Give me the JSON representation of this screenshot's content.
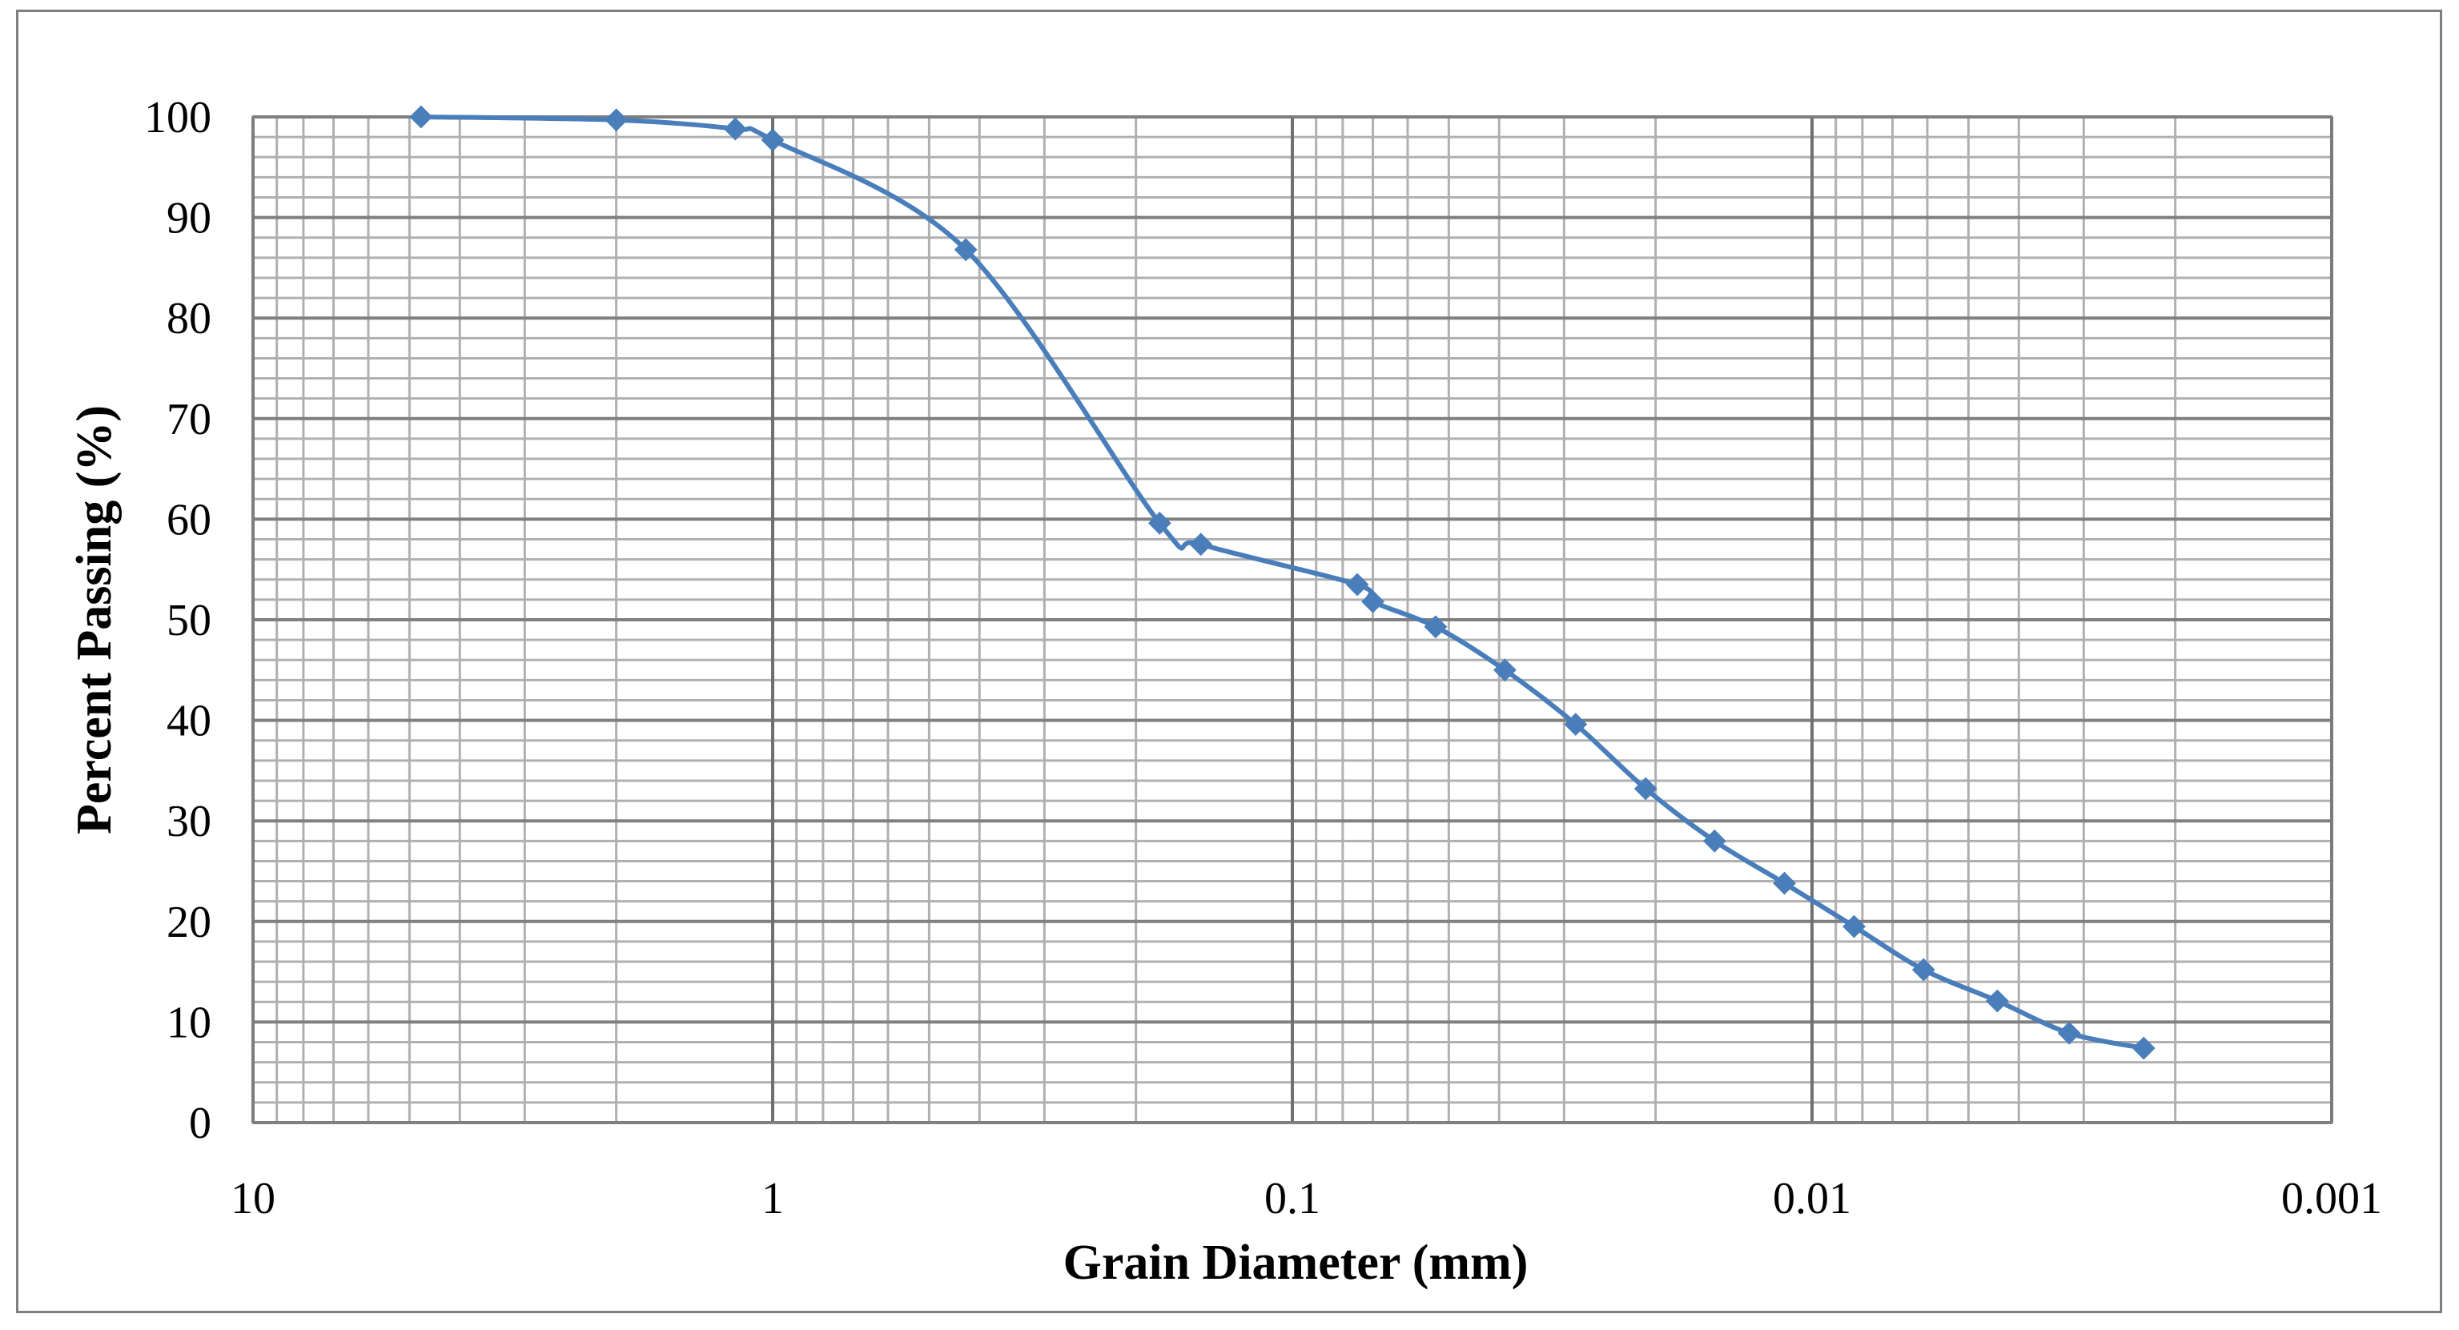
{
  "chart_data": {
    "type": "line",
    "title": "",
    "xlabel": "Grain Diameter (mm)",
    "ylabel": "Percent Passing (%)",
    "x_scale": "log",
    "x_reversed": true,
    "xlim": [
      10,
      0.001
    ],
    "ylim": [
      0,
      100
    ],
    "grid": true,
    "legend": "none",
    "x_tick_labels": [
      "10",
      "1",
      "0.1",
      "0.01",
      "0.001"
    ],
    "y_tick_labels": [
      "0",
      "10",
      "20",
      "30",
      "40",
      "50",
      "60",
      "70",
      "80",
      "90",
      "100"
    ],
    "line_color": "#4a7ebb",
    "marker": "diamond",
    "series": [
      {
        "x": [
          4.75,
          2.0,
          1.18,
          1.0,
          0.425,
          0.18,
          0.15,
          0.075,
          0.07,
          0.053,
          0.039,
          0.0285,
          0.0209,
          0.0154,
          0.0113,
          0.0083,
          0.0061,
          0.0044,
          0.0032,
          0.0023
        ],
        "y": [
          100,
          99.7,
          98.8,
          97.7,
          86.8,
          59.6,
          57.5,
          53.5,
          51.8,
          49.3,
          45.0,
          39.6,
          33.2,
          28.0,
          23.8,
          19.5,
          15.2,
          12.1,
          8.9,
          7.4
        ]
      }
    ]
  }
}
